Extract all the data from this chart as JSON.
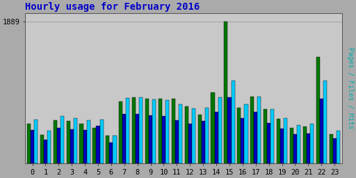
{
  "title": "Hourly usage for February 2016",
  "hours": [
    0,
    1,
    2,
    3,
    4,
    5,
    6,
    7,
    8,
    9,
    10,
    11,
    12,
    13,
    14,
    15,
    16,
    17,
    18,
    19,
    20,
    21,
    22,
    23
  ],
  "pages": [
    530,
    380,
    570,
    560,
    530,
    470,
    370,
    820,
    880,
    860,
    860,
    860,
    760,
    650,
    940,
    1889,
    740,
    890,
    720,
    590,
    470,
    490,
    1420,
    390
  ],
  "files": [
    440,
    310,
    470,
    450,
    440,
    500,
    280,
    660,
    660,
    640,
    630,
    570,
    530,
    560,
    680,
    880,
    600,
    680,
    540,
    460,
    385,
    400,
    860,
    330
  ],
  "hits": [
    580,
    430,
    630,
    600,
    575,
    580,
    365,
    870,
    880,
    850,
    840,
    790,
    730,
    740,
    880,
    1100,
    790,
    890,
    720,
    600,
    510,
    530,
    1100,
    435
  ],
  "color_pages": "#007700",
  "color_files": "#0000bb",
  "color_hits": "#00ccff",
  "color_title": "#0000cc",
  "color_ylabel": "#00aaaa",
  "bg_color": "#aaaaaa",
  "plot_bg": "#c8c8c8",
  "ylabel": "Pages / Files / Hits",
  "ymax": 1889,
  "ytick_label": "1889"
}
